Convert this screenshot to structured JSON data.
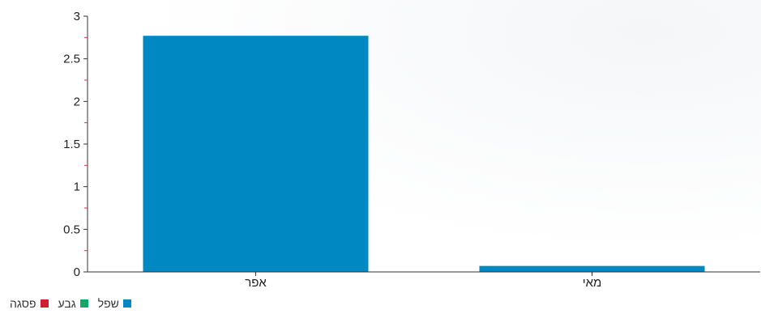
{
  "chart_data": {
    "type": "bar",
    "categories": [
      "אפר",
      "מאי"
    ],
    "series": [
      {
        "name": "שפל",
        "values": [
          2.77,
          0.07
        ],
        "color": "#0088c2"
      },
      {
        "name": "גבע",
        "values": [
          0,
          0
        ],
        "color": "#10a86a"
      },
      {
        "name": "פסגה",
        "values": [
          0,
          0
        ],
        "color": "#d0202f"
      }
    ],
    "yticks": [
      "0",
      "0.5",
      "1",
      "1.5",
      "2",
      "2.5",
      "3"
    ],
    "ylim": [
      0,
      3
    ],
    "grid": false,
    "legend_position": "bottom-left",
    "colors": {
      "axis": "#333333",
      "minor_tick": "#e03030"
    }
  }
}
